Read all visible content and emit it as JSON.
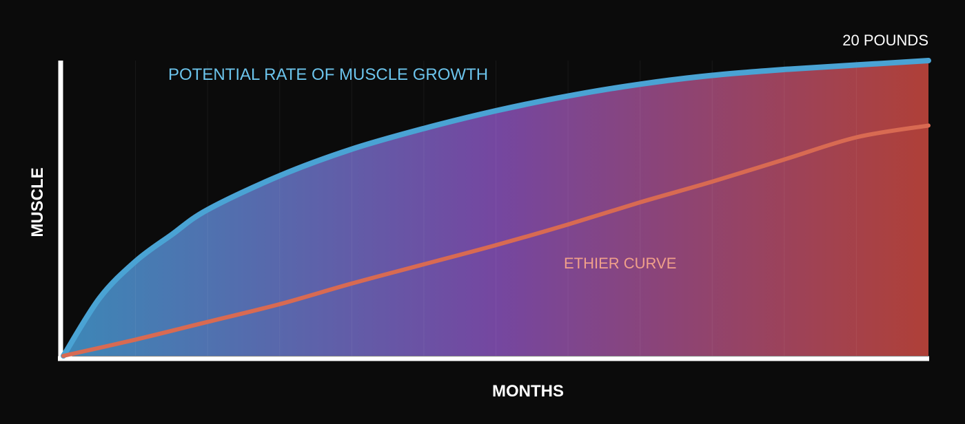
{
  "chart_data": {
    "type": "line",
    "title": "",
    "xlabel": "MONTHS",
    "ylabel": "MUSCLE",
    "xlim": [
      0,
      12
    ],
    "ylim": [
      0,
      20
    ],
    "top_label": "20 POUNDS",
    "grid": "vertical",
    "series": [
      {
        "name": "POTENTIAL RATE OF MUSCLE GROWTH",
        "color": "#4aa3d4",
        "x": [
          0,
          0.5,
          1,
          1.5,
          2,
          3,
          4,
          5,
          6,
          7,
          8,
          9,
          10,
          11,
          12
        ],
        "y": [
          0,
          3.9,
          6.4,
          8.2,
          9.9,
          12.2,
          14.0,
          15.4,
          16.6,
          17.6,
          18.4,
          19.0,
          19.4,
          19.7,
          20.0
        ]
      },
      {
        "name": "ETHIER CURVE",
        "color": "#d86a52",
        "x": [
          0,
          1,
          2,
          3,
          4,
          5,
          6,
          7,
          8,
          9,
          10,
          11,
          12
        ],
        "y": [
          0,
          1.1,
          2.3,
          3.5,
          4.9,
          6.2,
          7.5,
          8.9,
          10.4,
          11.8,
          13.3,
          14.8,
          15.6
        ]
      }
    ],
    "fill_gradient": [
      "#3f8ec0",
      "#7a4aa8",
      "#b8433a"
    ]
  }
}
